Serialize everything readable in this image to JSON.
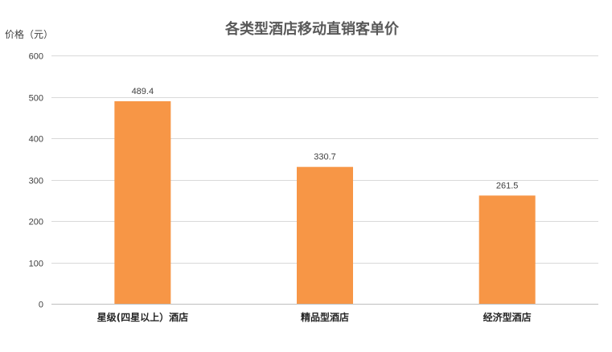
{
  "chart_data": {
    "type": "bar",
    "title": "各类型酒店移动直销客单价",
    "ylabel": "价格（元）",
    "xlabel": "",
    "categories": [
      "星级(四星以上）酒店",
      "精品型酒店",
      "经济型酒店"
    ],
    "values": [
      489.4,
      330.7,
      261.5
    ],
    "value_labels": [
      "489.4",
      "330.7",
      "261.5"
    ],
    "ylim": [
      0,
      600
    ],
    "yticks": [
      "0",
      "100",
      "200",
      "300",
      "400",
      "500",
      "600"
    ],
    "grid": true,
    "legend": "none",
    "bar_color": "#f79646"
  }
}
